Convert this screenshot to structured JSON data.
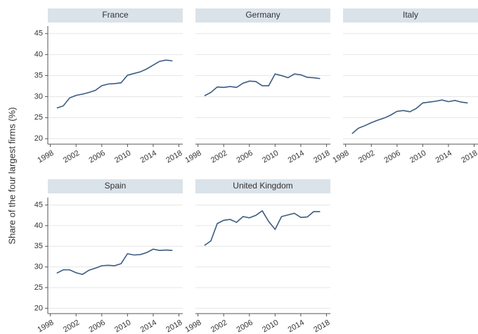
{
  "y_axis_label": "Share of the four largest firms (%)",
  "chart_data": [
    {
      "type": "line",
      "title": "France",
      "color": "#3b5b82",
      "grid": true,
      "x": [
        1999,
        2000,
        2001,
        2002,
        2003,
        2004,
        2005,
        2006,
        2007,
        2008,
        2009,
        2010,
        2011,
        2012,
        2013,
        2014,
        2015,
        2016,
        2017
      ],
      "values": [
        27.3,
        27.8,
        29.7,
        30.3,
        30.6,
        31.0,
        31.5,
        32.6,
        33.0,
        33.1,
        33.3,
        35.1,
        35.5,
        35.9,
        36.6,
        37.5,
        38.4,
        38.7,
        38.5
      ],
      "xlim": [
        1997.6,
        2018.6
      ],
      "xticks": [
        1998,
        2002,
        2006,
        2010,
        2014,
        2018
      ],
      "ylim": [
        18.7,
        46.8
      ],
      "yticks": [
        20,
        25,
        30,
        35,
        40,
        45
      ]
    },
    {
      "type": "line",
      "title": "Germany",
      "color": "#3b5b82",
      "grid": true,
      "x": [
        1999,
        2000,
        2001,
        2002,
        2003,
        2004,
        2005,
        2006,
        2007,
        2008,
        2009,
        2010,
        2011,
        2012,
        2013,
        2014,
        2015,
        2016,
        2017
      ],
      "values": [
        30.2,
        31.0,
        32.3,
        32.2,
        32.4,
        32.2,
        33.2,
        33.7,
        33.6,
        32.6,
        32.6,
        35.4,
        35.0,
        34.5,
        35.4,
        35.2,
        34.6,
        34.5,
        34.3
      ],
      "xlim": [
        1997.6,
        2018.6
      ],
      "xticks": [
        1998,
        2002,
        2006,
        2010,
        2014,
        2018
      ],
      "ylim": [
        18.7,
        46.8
      ],
      "yticks": [
        20,
        25,
        30,
        35,
        40,
        45
      ]
    },
    {
      "type": "line",
      "title": "Italy",
      "color": "#3b5b82",
      "grid": true,
      "x": [
        1999,
        2000,
        2001,
        2002,
        2003,
        2004,
        2005,
        2006,
        2007,
        2008,
        2009,
        2010,
        2011,
        2012,
        2013,
        2014,
        2015,
        2016,
        2017
      ],
      "values": [
        21.2,
        22.5,
        23.1,
        23.8,
        24.4,
        24.9,
        25.6,
        26.5,
        26.7,
        26.4,
        27.2,
        28.5,
        28.7,
        28.9,
        29.2,
        28.8,
        29.1,
        28.7,
        28.5
      ],
      "xlim": [
        1997.6,
        2018.6
      ],
      "xticks": [
        1998,
        2002,
        2006,
        2010,
        2014,
        2018
      ],
      "ylim": [
        18.7,
        46.8
      ],
      "yticks": [
        20,
        25,
        30,
        35,
        40,
        45
      ]
    },
    {
      "type": "line",
      "title": "Spain",
      "color": "#3b5b82",
      "grid": true,
      "x": [
        1999,
        2000,
        2001,
        2002,
        2003,
        2004,
        2005,
        2006,
        2007,
        2008,
        2009,
        2010,
        2011,
        2012,
        2013,
        2014,
        2015,
        2016,
        2017
      ],
      "values": [
        28.5,
        29.3,
        29.3,
        28.6,
        28.2,
        29.2,
        29.7,
        30.3,
        30.4,
        30.3,
        30.8,
        33.2,
        32.9,
        33.0,
        33.5,
        34.3,
        34.0,
        34.1,
        34.0
      ],
      "xlim": [
        1997.6,
        2018.6
      ],
      "xticks": [
        1998,
        2002,
        2006,
        2010,
        2014,
        2018
      ],
      "ylim": [
        18.7,
        46.8
      ],
      "yticks": [
        20,
        25,
        30,
        35,
        40,
        45
      ]
    },
    {
      "type": "line",
      "title": "United Kingdom",
      "color": "#3b5b82",
      "grid": true,
      "x": [
        1999,
        2000,
        2001,
        2002,
        2003,
        2004,
        2005,
        2006,
        2007,
        2008,
        2009,
        2010,
        2011,
        2012,
        2013,
        2014,
        2015,
        2016,
        2017
      ],
      "values": [
        35.2,
        36.3,
        40.5,
        41.3,
        41.5,
        40.8,
        42.2,
        41.9,
        42.5,
        43.6,
        41.0,
        39.1,
        42.2,
        42.6,
        43.0,
        42.0,
        42.1,
        43.4,
        43.4
      ],
      "xlim": [
        1997.6,
        2018.6
      ],
      "xticks": [
        1998,
        2002,
        2006,
        2010,
        2014,
        2018
      ],
      "ylim": [
        18.7,
        46.8
      ],
      "yticks": [
        20,
        25,
        30,
        35,
        40,
        45
      ]
    }
  ]
}
